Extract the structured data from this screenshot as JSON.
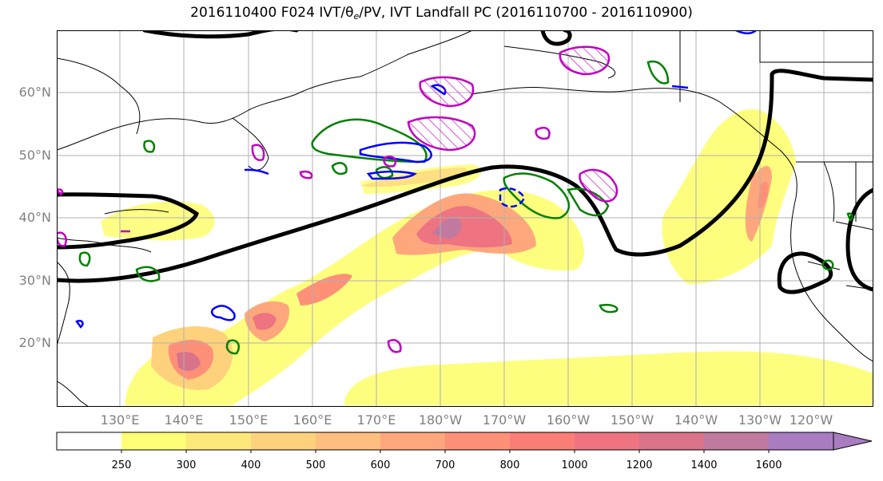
{
  "figure": {
    "title": "2016110400 F024 IVT/θe/PV, IVT Landfall PC (2016110700 - 2016110900)",
    "title_main": "2016110400 F024 IVT/",
    "title_theta": "θ",
    "title_theta_sub": "e",
    "title_rest": "/PV, IVT Landfall PC (2016110700 - 2016110900)"
  },
  "map": {
    "lat_labels": [
      "60°N",
      "50°N",
      "40°N",
      "30°N",
      "20°N"
    ],
    "lon_labels": [
      "130°E",
      "140°E",
      "150°E",
      "160°E",
      "170°E",
      "180°W",
      "170°W",
      "160°W",
      "150°W",
      "140°W",
      "130°W",
      "120°W"
    ],
    "grid": true,
    "colors": {
      "land_outline": "#000000",
      "theta_e_contour": "#000000",
      "pv_green": "#008000",
      "pv_blue": "#0000ff",
      "pv_magenta": "#c000c0",
      "grid": "#b0b0b0"
    }
  },
  "colorbar": {
    "levels": [
      "250",
      "300",
      "400",
      "500",
      "600",
      "700",
      "800",
      "1000",
      "1200",
      "1400",
      "1600"
    ],
    "colors": [
      "#fefe77",
      "#fee87a",
      "#fed27d",
      "#febe7f",
      "#fea77d",
      "#fe9078",
      "#fa7d76",
      "#ed7480",
      "#d97389",
      "#c07aa0",
      "#a97cc1"
    ],
    "extend": "max"
  }
}
